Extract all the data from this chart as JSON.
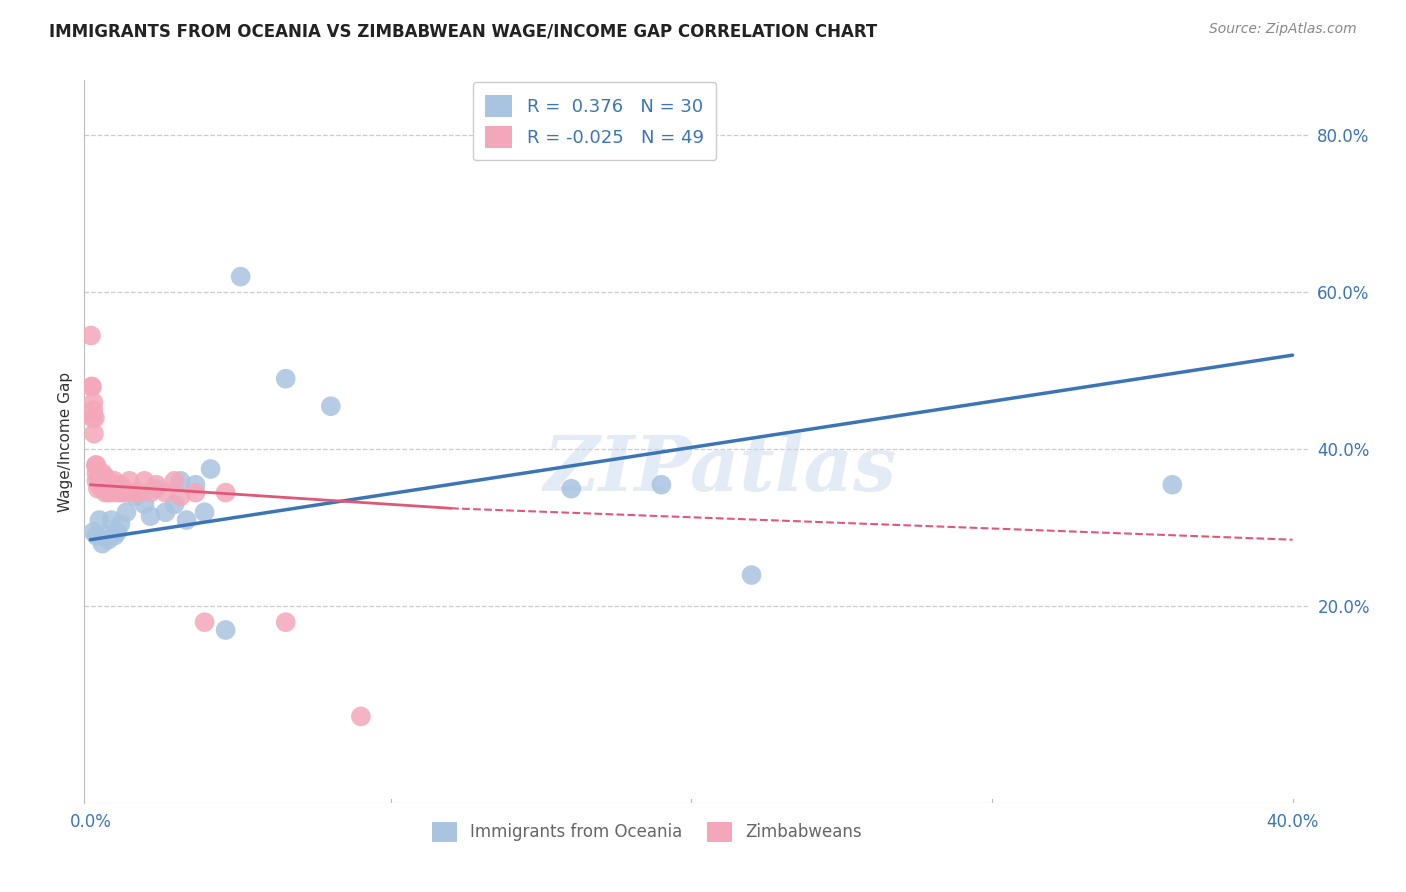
{
  "title": "IMMIGRANTS FROM OCEANIA VS ZIMBABWEAN WAGE/INCOME GAP CORRELATION CHART",
  "source": "Source: ZipAtlas.com",
  "xlabel_oceania": "Immigrants from Oceania",
  "xlabel_zimbabweans": "Zimbabweans",
  "ylabel": "Wage/Income Gap",
  "xlim": [
    -0.002,
    0.405
  ],
  "ylim": [
    -0.05,
    0.87
  ],
  "x_tick_positions": [
    0.0,
    0.1,
    0.2,
    0.3,
    0.4
  ],
  "x_tick_labels": [
    "0.0%",
    "",
    "",
    "",
    "40.0%"
  ],
  "y_tick_positions": [
    0.2,
    0.4,
    0.6,
    0.8
  ],
  "y_tick_labels": [
    "20.0%",
    "40.0%",
    "60.0%",
    "80.0%"
  ],
  "R_oceania": 0.376,
  "N_oceania": 30,
  "R_zimbabweans": -0.025,
  "N_zimbabweans": 49,
  "color_oceania": "#a8c4e0",
  "color_zimbabweans": "#f4a7b9",
  "line_color_oceania": "#3b75b5",
  "line_color_zimbabweans": "#e05878",
  "watermark": "ZIPatlas",
  "oceania_x": [
    0.001,
    0.002,
    0.003,
    0.004,
    0.005,
    0.006,
    0.007,
    0.008,
    0.009,
    0.01,
    0.012,
    0.015,
    0.018,
    0.02,
    0.022,
    0.025,
    0.028,
    0.03,
    0.032,
    0.035,
    0.038,
    0.04,
    0.045,
    0.05,
    0.065,
    0.08,
    0.16,
    0.19,
    0.22,
    0.36
  ],
  "oceania_y": [
    0.295,
    0.29,
    0.31,
    0.28,
    0.29,
    0.285,
    0.31,
    0.29,
    0.295,
    0.305,
    0.32,
    0.34,
    0.33,
    0.315,
    0.35,
    0.32,
    0.33,
    0.36,
    0.31,
    0.355,
    0.32,
    0.375,
    0.17,
    0.62,
    0.49,
    0.455,
    0.35,
    0.355,
    0.24,
    0.355
  ],
  "zimbabweans_x": [
    0.0002,
    0.0004,
    0.0005,
    0.0007,
    0.001,
    0.001,
    0.0012,
    0.0015,
    0.0018,
    0.002,
    0.002,
    0.002,
    0.0025,
    0.003,
    0.003,
    0.003,
    0.0035,
    0.004,
    0.004,
    0.004,
    0.004,
    0.005,
    0.005,
    0.005,
    0.006,
    0.006,
    0.007,
    0.008,
    0.008,
    0.009,
    0.009,
    0.01,
    0.01,
    0.011,
    0.012,
    0.013,
    0.015,
    0.016,
    0.018,
    0.02,
    0.022,
    0.025,
    0.028,
    0.03,
    0.035,
    0.038,
    0.045,
    0.065,
    0.09
  ],
  "zimbabweans_y": [
    0.545,
    0.48,
    0.48,
    0.44,
    0.45,
    0.46,
    0.42,
    0.44,
    0.38,
    0.36,
    0.37,
    0.38,
    0.35,
    0.355,
    0.36,
    0.365,
    0.355,
    0.35,
    0.355,
    0.36,
    0.37,
    0.345,
    0.355,
    0.365,
    0.345,
    0.355,
    0.345,
    0.35,
    0.36,
    0.345,
    0.355,
    0.345,
    0.355,
    0.345,
    0.345,
    0.36,
    0.345,
    0.345,
    0.36,
    0.345,
    0.355,
    0.345,
    0.36,
    0.34,
    0.345,
    0.18,
    0.345,
    0.18,
    0.06
  ]
}
